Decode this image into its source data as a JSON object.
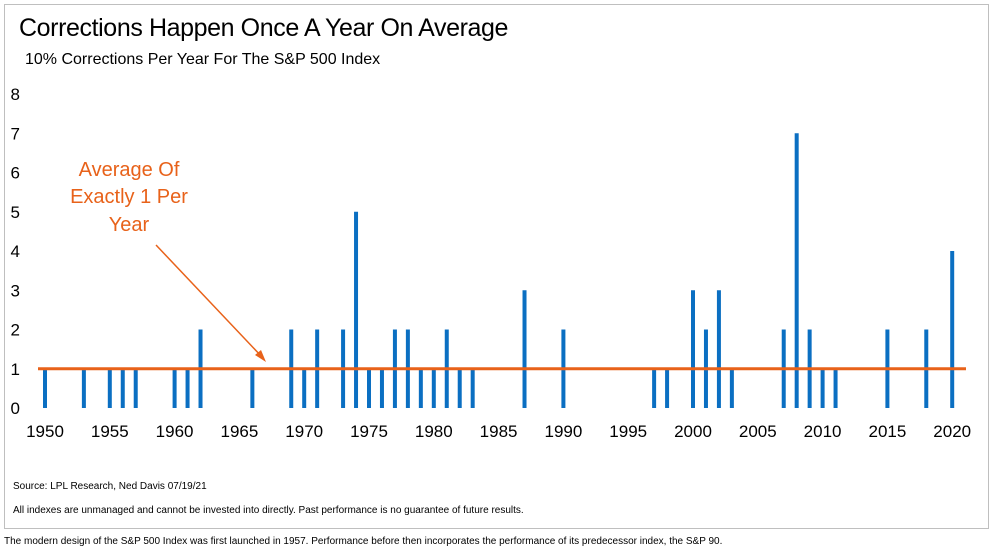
{
  "title": "Corrections Happen Once A Year On Average",
  "subtitle": "10% Corrections Per Year For The S&P 500 Index",
  "source": "Source: LPL Research, Ned Davis 07/19/21",
  "disclaimer": "All indexes are unmanaged and cannot be invested into directly. Past performance is no guarantee of future results.",
  "footnote": "The modern design of the S&P 500 Index was first launched in 1957. Performance before then incorporates the performance of its predecessor index, the S&P 90.",
  "annotation": {
    "lines": [
      "Average Of",
      "Exactly 1 Per",
      "Year"
    ]
  },
  "colors": {
    "bar": "#0b6fc2",
    "average_line": "#e8621a",
    "annotation": "#e8621a"
  },
  "chart_data": {
    "type": "bar",
    "title": "Corrections Happen Once A Year On Average",
    "subtitle": "10% Corrections Per Year For The S&P 500 Index",
    "xlabel": "",
    "ylabel": "",
    "xlim": [
      1950,
      2021
    ],
    "ylim": [
      0,
      8
    ],
    "x_ticks": [
      1950,
      1955,
      1960,
      1965,
      1970,
      1975,
      1980,
      1985,
      1990,
      1995,
      2000,
      2005,
      2010,
      2015,
      2020
    ],
    "y_ticks": [
      0,
      1,
      2,
      3,
      4,
      5,
      6,
      7,
      8
    ],
    "grid": false,
    "average": 1,
    "categories": [
      1950,
      1953,
      1955,
      1956,
      1957,
      1960,
      1961,
      1962,
      1966,
      1969,
      1970,
      1971,
      1973,
      1974,
      1975,
      1976,
      1977,
      1978,
      1979,
      1980,
      1981,
      1982,
      1983,
      1987,
      1990,
      1997,
      1998,
      2000,
      2001,
      2002,
      2003,
      2007,
      2008,
      2009,
      2010,
      2011,
      2015,
      2018,
      2020
    ],
    "values": [
      1,
      1,
      1,
      1,
      1,
      1,
      1,
      2,
      1,
      2,
      1,
      2,
      2,
      5,
      1,
      1,
      2,
      2,
      1,
      1,
      2,
      1,
      1,
      3,
      2,
      1,
      1,
      3,
      2,
      3,
      1,
      2,
      7,
      2,
      1,
      1,
      2,
      2,
      4
    ]
  }
}
